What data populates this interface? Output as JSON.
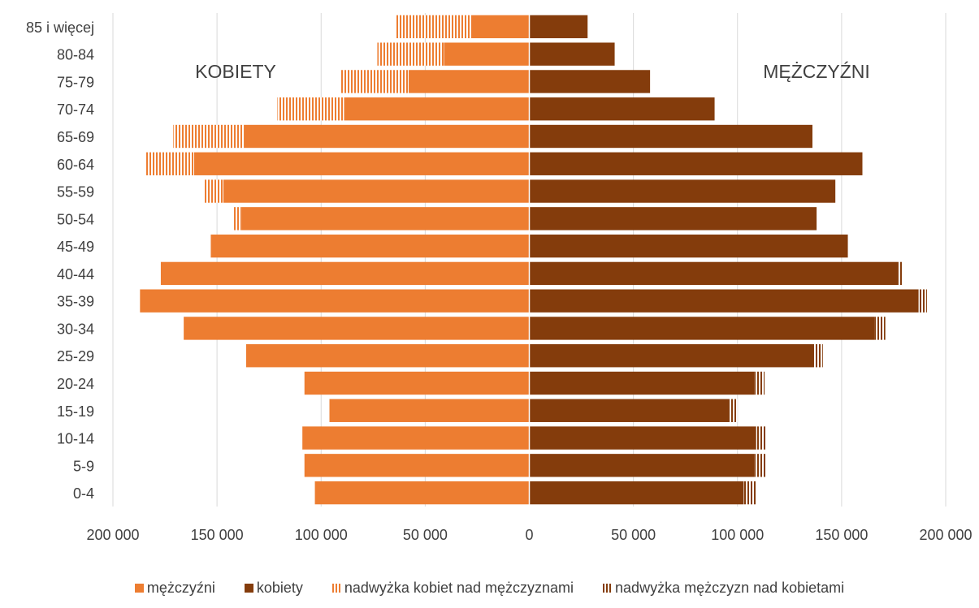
{
  "chart_data": {
    "type": "bar",
    "orientation": "horizontal",
    "categories": [
      "0-4",
      "5-9",
      "10-14",
      "15-19",
      "20-24",
      "25-29",
      "30-34",
      "35-39",
      "40-44",
      "45-49",
      "50-54",
      "55-59",
      "60-64",
      "65-69",
      "70-74",
      "75-79",
      "80-84",
      "85 i więcej"
    ],
    "series": [
      {
        "name": "mężczyźni",
        "color": "#ED7D31",
        "side": "left",
        "values": [
          103000,
          108000,
          109000,
          96000,
          108000,
          136000,
          166000,
          187000,
          177000,
          153000,
          138000,
          147000,
          161000,
          137000,
          89000,
          58000,
          41000,
          28000
        ]
      },
      {
        "name": "kobiety",
        "color": "#843C0C",
        "side": "right",
        "values": [
          103000,
          108000,
          109000,
          96000,
          108000,
          136000,
          166000,
          187000,
          177000,
          153000,
          138000,
          147000,
          160000,
          136000,
          89000,
          58000,
          41000,
          28000
        ]
      },
      {
        "name": "nadwyżka kobiet nad mężczyznami",
        "color": "#ED7D31",
        "pattern": "vertical-stripes",
        "side": "left",
        "values": [
          0,
          0,
          0,
          0,
          0,
          0,
          0,
          0,
          0,
          0,
          4000,
          9000,
          23000,
          34000,
          32000,
          33000,
          32000,
          36000
        ]
      },
      {
        "name": "nadwyżka mężczyzn nad kobietami",
        "color": "#843C0C",
        "pattern": "vertical-stripes",
        "side": "right",
        "values": [
          6000,
          6000,
          5000,
          4000,
          5000,
          5000,
          5000,
          4000,
          2000,
          0,
          0,
          0,
          0,
          0,
          0,
          0,
          0,
          0
        ]
      }
    ],
    "xlim": [
      -200000,
      200000
    ],
    "xticks": [
      "200 000",
      "150 000",
      "100 000",
      "50 000",
      "0",
      "50 000",
      "100 000",
      "150 000",
      "200 000"
    ],
    "annotations": {
      "left": "KOBIETY",
      "right": "MĘŻCZYŹNI"
    },
    "grid": true,
    "legend_position": "bottom"
  },
  "legend": {
    "items": [
      {
        "label": "mężczyźni",
        "color": "#ED7D31"
      },
      {
        "label": "kobiety",
        "color": "#843C0C"
      },
      {
        "label": "nadwyżka kobiet nad mężczyznami",
        "color": "#ED7D31"
      },
      {
        "label": "nadwyżka mężczyzn nad kobietami",
        "color": "#843C0C"
      }
    ]
  }
}
